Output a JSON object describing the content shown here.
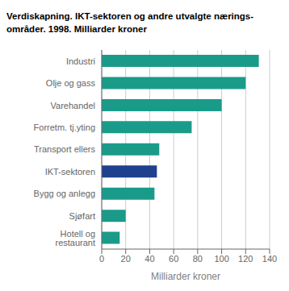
{
  "chart_data": {
    "type": "bar",
    "orientation": "horizontal",
    "title": "Verdiskapning. IKT-sektoren og andre utvalgte nærings-\nområder. 1998. Milliarder kroner",
    "xlabel": "Milliarder kroner",
    "categories": [
      "Hotell og restaurant",
      "Sjøfart",
      "Bygg og anlegg",
      "IKT-sektoren",
      "Transport ellers",
      "Forretm. tj.yting",
      "Varehandel",
      "Olje og gass",
      "Industri"
    ],
    "values": [
      15,
      20,
      44,
      46,
      48,
      75,
      100,
      120,
      131
    ],
    "colors": [
      "#1a9b8a",
      "#1a9b8a",
      "#1a9b8a",
      "#1f3f8f",
      "#1a9b8a",
      "#1a9b8a",
      "#1a9b8a",
      "#1a9b8a",
      "#1a9b8a"
    ],
    "xlim": [
      0,
      140
    ],
    "xticks": [
      0,
      20,
      40,
      60,
      80,
      100,
      120,
      140
    ],
    "grid": true
  }
}
